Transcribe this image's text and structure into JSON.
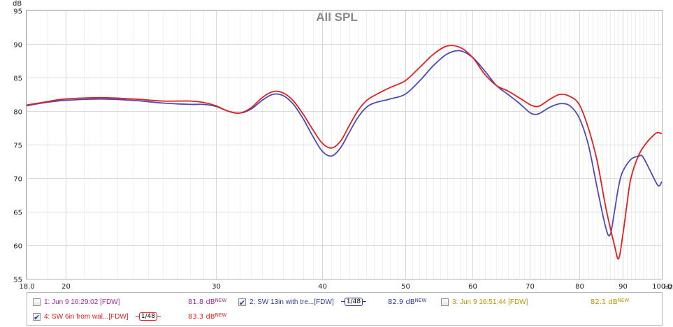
{
  "chart_data": {
    "type": "line",
    "title": "All SPL",
    "ylabel": "dB",
    "xunit": "Hz",
    "x_scale": "log",
    "xlim": [
      18.0,
      100.0
    ],
    "ylim": [
      55,
      95
    ],
    "x_ticks": [
      "18.0",
      "20",
      "30",
      "40",
      "50",
      "60",
      "70",
      "80",
      "90",
      "100.0"
    ],
    "y_ticks": [
      "55",
      "60",
      "65",
      "70",
      "75",
      "80",
      "85",
      "90",
      "95"
    ],
    "grid": true,
    "series": [
      {
        "name": "2: SW 13in with tre...[FDW]",
        "color": "#4b4bb5",
        "points": [
          [
            18,
            80.8
          ],
          [
            19,
            81.3
          ],
          [
            20,
            81.6
          ],
          [
            22,
            81.8
          ],
          [
            24,
            81.6
          ],
          [
            26,
            81.2
          ],
          [
            28,
            81.0
          ],
          [
            29,
            81.0
          ],
          [
            30,
            80.7
          ],
          [
            31,
            80.0
          ],
          [
            32,
            79.7
          ],
          [
            33,
            80.3
          ],
          [
            34,
            81.6
          ],
          [
            35,
            82.5
          ],
          [
            36,
            82.3
          ],
          [
            37,
            81.0
          ],
          [
            38,
            78.8
          ],
          [
            39,
            76.2
          ],
          [
            40,
            74.0
          ],
          [
            41,
            73.3
          ],
          [
            42,
            74.5
          ],
          [
            43,
            76.8
          ],
          [
            44,
            79.0
          ],
          [
            45,
            80.5
          ],
          [
            46,
            81.2
          ],
          [
            48,
            81.8
          ],
          [
            50,
            82.5
          ],
          [
            52,
            84.5
          ],
          [
            54,
            86.8
          ],
          [
            56,
            88.5
          ],
          [
            58,
            89.0
          ],
          [
            60,
            88.0
          ],
          [
            62,
            86.0
          ],
          [
            64,
            83.8
          ],
          [
            66,
            82.5
          ],
          [
            68,
            81.2
          ],
          [
            70,
            79.8
          ],
          [
            71,
            79.5
          ],
          [
            72,
            79.7
          ],
          [
            74,
            80.6
          ],
          [
            76,
            81.1
          ],
          [
            78,
            80.8
          ],
          [
            80,
            79.0
          ],
          [
            82,
            75.0
          ],
          [
            84,
            68.5
          ],
          [
            86,
            62.5
          ],
          [
            87,
            61.6
          ],
          [
            88,
            65.0
          ],
          [
            89,
            68.8
          ],
          [
            90,
            71.0
          ],
          [
            92,
            72.8
          ],
          [
            94,
            73.3
          ],
          [
            95,
            73.2
          ],
          [
            97,
            71.0
          ],
          [
            99,
            68.9
          ],
          [
            100,
            69.5
          ]
        ]
      },
      {
        "name": "4: SW 6in from wal...[FDW]",
        "color": "#e02020",
        "points": [
          [
            18,
            80.9
          ],
          [
            19,
            81.4
          ],
          [
            20,
            81.8
          ],
          [
            22,
            82.0
          ],
          [
            24,
            81.8
          ],
          [
            26,
            81.5
          ],
          [
            28,
            81.5
          ],
          [
            29,
            81.3
          ],
          [
            30,
            80.8
          ],
          [
            31,
            80.0
          ],
          [
            32,
            79.7
          ],
          [
            33,
            80.5
          ],
          [
            34,
            82.0
          ],
          [
            35,
            82.9
          ],
          [
            36,
            82.7
          ],
          [
            37,
            81.5
          ],
          [
            38,
            79.5
          ],
          [
            39,
            77.2
          ],
          [
            40,
            75.2
          ],
          [
            41,
            74.5
          ],
          [
            42,
            75.5
          ],
          [
            43,
            77.8
          ],
          [
            44,
            80.0
          ],
          [
            45,
            81.5
          ],
          [
            46,
            82.3
          ],
          [
            48,
            83.5
          ],
          [
            50,
            84.5
          ],
          [
            52,
            86.5
          ],
          [
            54,
            88.5
          ],
          [
            56,
            89.7
          ],
          [
            58,
            89.5
          ],
          [
            60,
            88.0
          ],
          [
            62,
            85.5
          ],
          [
            64,
            83.8
          ],
          [
            66,
            83.0
          ],
          [
            68,
            82.0
          ],
          [
            70,
            81.0
          ],
          [
            71,
            80.7
          ],
          [
            72,
            80.8
          ],
          [
            74,
            81.8
          ],
          [
            76,
            82.5
          ],
          [
            78,
            82.2
          ],
          [
            80,
            81.0
          ],
          [
            82,
            77.5
          ],
          [
            84,
            72.5
          ],
          [
            86,
            65.5
          ],
          [
            88,
            60.0
          ],
          [
            89,
            58.0
          ],
          [
            90,
            61.5
          ],
          [
            91,
            66.0
          ],
          [
            92,
            70.0
          ],
          [
            94,
            73.5
          ],
          [
            96,
            75.3
          ],
          [
            98,
            76.5
          ],
          [
            99,
            76.8
          ],
          [
            100,
            76.6
          ]
        ]
      }
    ]
  },
  "legend": [
    {
      "label": "1: Jun 9 16:29:02 [FDW]",
      "value": "81.8 dB",
      "sup": "NEW",
      "color": "#a02aa0",
      "checked": false,
      "smoothing": ""
    },
    {
      "label": "2: SW 13in with tre...[FDW]",
      "value": "82.9 dB",
      "sup": "NEW",
      "color": "#2e3c9a",
      "checked": true,
      "smoothing": "1/48"
    },
    {
      "label": "3: Jun 9 16:51:44 [FDW]",
      "value": "82.1 dB",
      "sup": "NEW",
      "color": "#b8960a",
      "checked": false,
      "smoothing": ""
    },
    {
      "label": "4: SW 6in from wal...[FDW]",
      "value": "83.3 dB",
      "sup": "NEW",
      "color": "#e02020",
      "checked": true,
      "smoothing": "1/48"
    }
  ]
}
